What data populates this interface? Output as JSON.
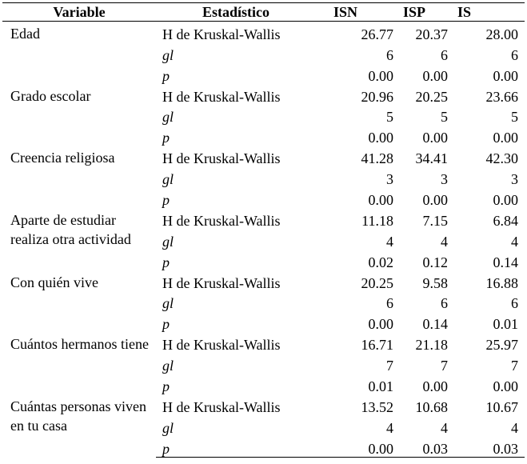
{
  "table": {
    "headers": {
      "variable": "Variable",
      "estadistico": "Estadístico",
      "isn": "ISN",
      "isp": "ISP",
      "is": "IS"
    },
    "groups": [
      {
        "variable": "Edad",
        "rows": [
          {
            "stat": "H de Kruskal-Wallis",
            "isn": "26.77",
            "isp": "20.37",
            "is": "28.00"
          },
          {
            "stat": "gl",
            "isn": "6",
            "isp": "6",
            "is": "6"
          },
          {
            "stat": "p",
            "isn": "0.00",
            "isp": "0.00",
            "is": "0.00"
          }
        ]
      },
      {
        "variable": "Grado escolar",
        "rows": [
          {
            "stat": "H de Kruskal-Wallis",
            "isn": "20.96",
            "isp": "20.25",
            "is": "23.66"
          },
          {
            "stat": "gl",
            "isn": "5",
            "isp": "5",
            "is": "5"
          },
          {
            "stat": "p",
            "isn": "0.00",
            "isp": "0.00",
            "is": "0.00"
          }
        ]
      },
      {
        "variable": "Creencia religiosa",
        "rows": [
          {
            "stat": "H de Kruskal-Wallis",
            "isn": "41.28",
            "isp": "34.41",
            "is": "42.30"
          },
          {
            "stat": "gl",
            "isn": "3",
            "isp": "3",
            "is": "3"
          },
          {
            "stat": "p",
            "isn": "0.00",
            "isp": "0.00",
            "is": "0.00"
          }
        ]
      },
      {
        "variable": "Aparte de estudiar realiza otra actividad",
        "rows": [
          {
            "stat": "H de Kruskal-Wallis",
            "isn": "11.18",
            "isp": "7.15",
            "is": "6.84"
          },
          {
            "stat": "gl",
            "isn": "4",
            "isp": "4",
            "is": "4"
          },
          {
            "stat": "p",
            "isn": "0.02",
            "isp": "0.12",
            "is": "0.14"
          }
        ]
      },
      {
        "variable": "Con quién vive",
        "rows": [
          {
            "stat": "H de Kruskal-Wallis",
            "isn": "20.25",
            "isp": "9.58",
            "is": "16.88"
          },
          {
            "stat": "gl",
            "isn": "6",
            "isp": "6",
            "is": "6"
          },
          {
            "stat": "p",
            "isn": "0.00",
            "isp": "0.14",
            "is": "0.01"
          }
        ]
      },
      {
        "variable": "Cuántos hermanos tiene",
        "rows": [
          {
            "stat": "H de Kruskal-Wallis",
            "isn": "16.71",
            "isp": "21.18",
            "is": "25.97"
          },
          {
            "stat": "gl",
            "isn": "7",
            "isp": "7",
            "is": "7"
          },
          {
            "stat": "p",
            "isn": "0.01",
            "isp": "0.00",
            "is": "0.00"
          }
        ]
      },
      {
        "variable": "Cuántas personas viven en tu casa",
        "rows": [
          {
            "stat": "H de Kruskal-Wallis",
            "isn": "13.52",
            "isp": "10.68",
            "is": "10.67"
          },
          {
            "stat": "gl",
            "isn": "4",
            "isp": "4",
            "is": "4"
          },
          {
            "stat": "p",
            "isn": "0.00",
            "isp": "0.03",
            "is": "0.03"
          }
        ]
      }
    ]
  }
}
